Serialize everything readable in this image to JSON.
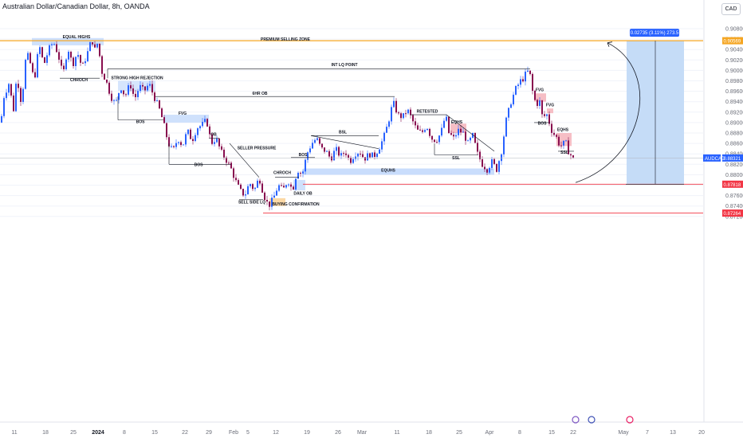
{
  "header": {
    "title": "Australian Dollar/Canadian Dollar, 8h, OANDA",
    "currency": "CAD"
  },
  "colors": {
    "up": "#2962ff",
    "down": "#880e4f",
    "premium_line": "#f5a623",
    "red_line": "#f23645",
    "blue_zone": "#bbd4fb",
    "red_zone": "#f5b7bf",
    "orange_zone": "#fbd49b",
    "projection_zone": "#c5dcf7",
    "price_badge": "#2962ff"
  },
  "chart_data": {
    "type": "candlestick",
    "symbol": "AUDCAD",
    "ylim": [
      0.871,
      0.91
    ],
    "y_ticks": [
      "0.90800",
      "0.90600",
      "0.90400",
      "0.90200",
      "0.90000",
      "0.89800",
      "0.89600",
      "0.89400",
      "0.89200",
      "0.89000",
      "0.88800",
      "0.88600",
      "0.88400",
      "0.88200",
      "0.88000",
      "0.87800",
      "0.87600",
      "0.87400",
      "0.87200"
    ],
    "x_ticks": [
      "11",
      "18",
      "25",
      "2024",
      "8",
      "15",
      "22",
      "29",
      "Feb",
      "5",
      "12",
      "19",
      "26",
      "Mar",
      "11",
      "18",
      "25",
      "Apr",
      "8",
      "15",
      "22",
      "May",
      "7",
      "13",
      "20"
    ],
    "price_labels": [
      {
        "value": "0.90569",
        "kind": "premium"
      },
      {
        "value": "0.88321",
        "kind": "symbol",
        "symbol": "AUDCAD"
      },
      {
        "value": "0.87818",
        "kind": "red"
      },
      {
        "value": "0.87264",
        "kind": "red"
      }
    ],
    "position_badge": "0.02735 (3.11%) 273.5",
    "annotations": [
      "EQUAL HIGHS",
      "PREMIUM SELLING ZONE",
      "INT LQ POINT",
      "CHROCH",
      "STRONG HIGH REJECTION",
      "6HR OB",
      "FVG",
      "BOS",
      "OB",
      "SELLER PRESSURE",
      "BOS",
      "BOS",
      "CHROCH",
      "DAILY OB",
      "SELL SIDE LQ",
      "BUYING CONFIRMATION",
      "BSL",
      "EQUHS",
      "RETESTED",
      "EQHS",
      "SSL",
      "FVG",
      "FVG",
      "BOS",
      "EQHS",
      "SSL"
    ]
  }
}
